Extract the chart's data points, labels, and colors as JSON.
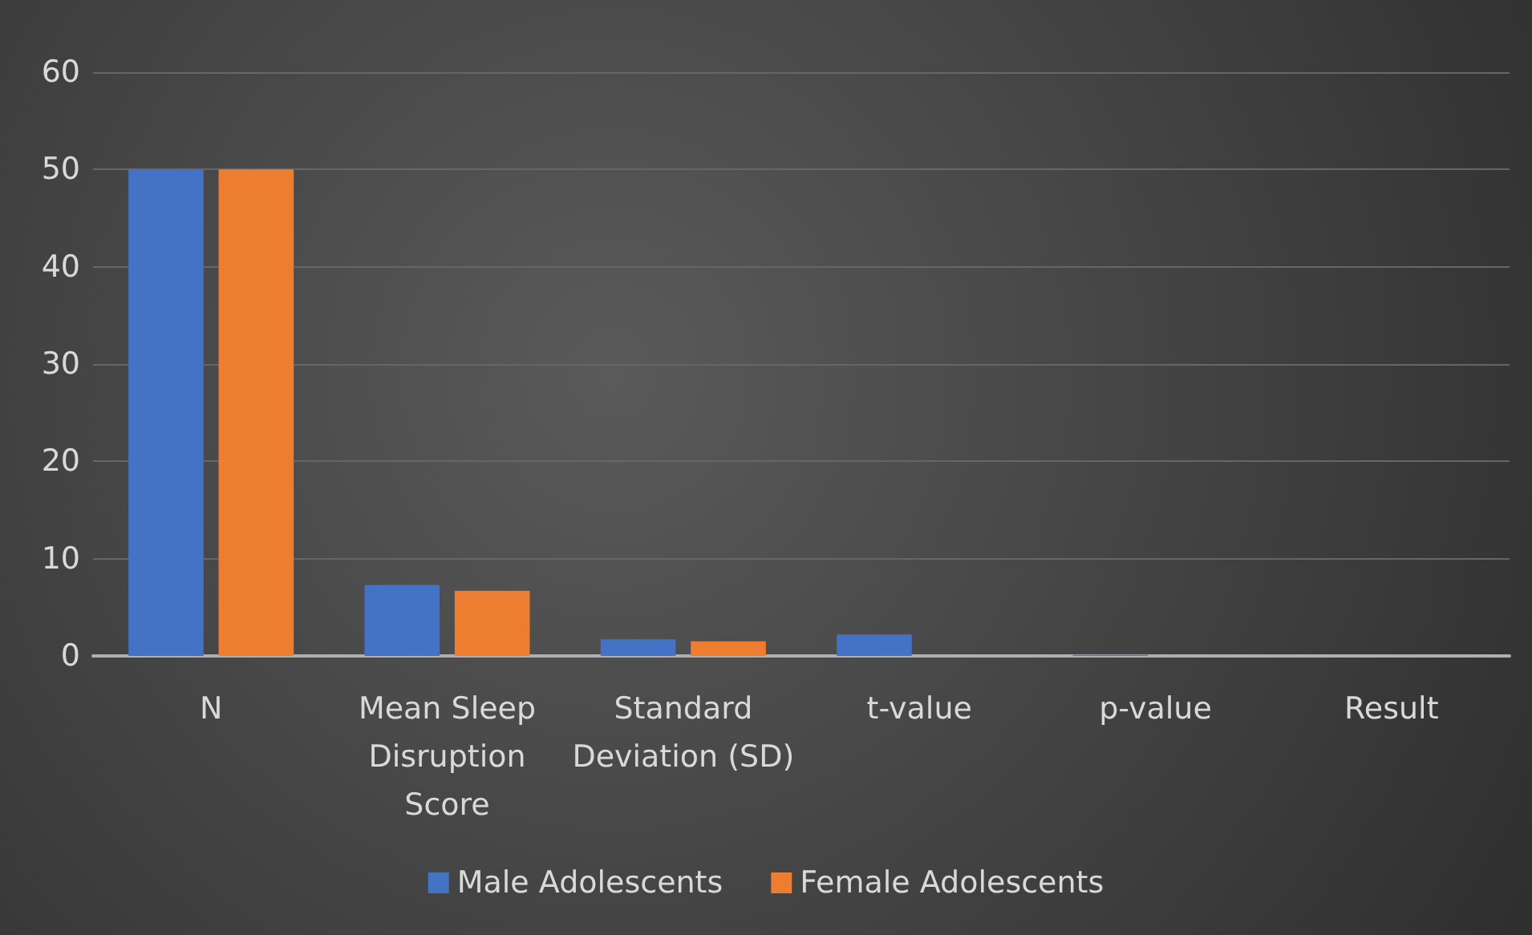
{
  "chart_data": {
    "type": "bar",
    "categories": [
      "N",
      "Mean Sleep\nDisruption\nScore",
      "Standard\nDeviation (SD)",
      "t-value",
      "p-value",
      "Result"
    ],
    "series": [
      {
        "name": "Male Adolescents",
        "color": "#4472c4",
        "values": [
          50,
          7.3,
          1.7,
          2.2,
          0.1,
          null
        ]
      },
      {
        "name": "Female Adolescents",
        "color": "#ed7d31",
        "values": [
          50,
          6.7,
          1.5,
          null,
          null,
          null
        ]
      }
    ],
    "ylim": [
      0,
      60
    ],
    "yticks": [
      0,
      10,
      20,
      30,
      40,
      50,
      60
    ],
    "grid": "y",
    "legend": "bottom"
  }
}
